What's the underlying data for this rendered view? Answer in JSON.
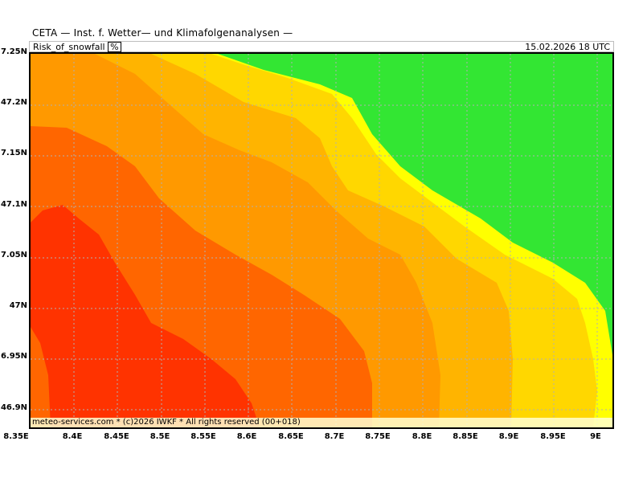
{
  "header": {
    "title": "CETA — Inst. f. Wetter— und Klimafolgenanalysen —",
    "parameter": "Risk_of_snowfall",
    "unit": "%",
    "valid_time": "15.02.2026 18 UTC"
  },
  "footer": {
    "copyright": "meteo-services.com * (c)2026 IWKF * All rights reserved (00+018)"
  },
  "axes": {
    "y_labels": [
      "7.25N",
      "47.2N",
      "7.15N",
      "47.1N",
      "7.05N",
      "47N",
      "6.95N",
      "46.9N"
    ],
    "x_labels": [
      "8.35E",
      "8.4E",
      "8.45E",
      "8.5E",
      "8.55E",
      "8.6E",
      "8.65E",
      "8.7E",
      "8.75E",
      "8.8E",
      "8.85E",
      "8.9E",
      "8.95E",
      "9E"
    ]
  },
  "colors": {
    "band_1": "#ff3300",
    "band_2": "#ff6600",
    "band_3": "#ff9900",
    "band_4": "#ffb400",
    "band_5": "#ffd700",
    "band_6": "#ffff00",
    "band_7": "#33e633",
    "grid": "#b0b0b0"
  }
}
